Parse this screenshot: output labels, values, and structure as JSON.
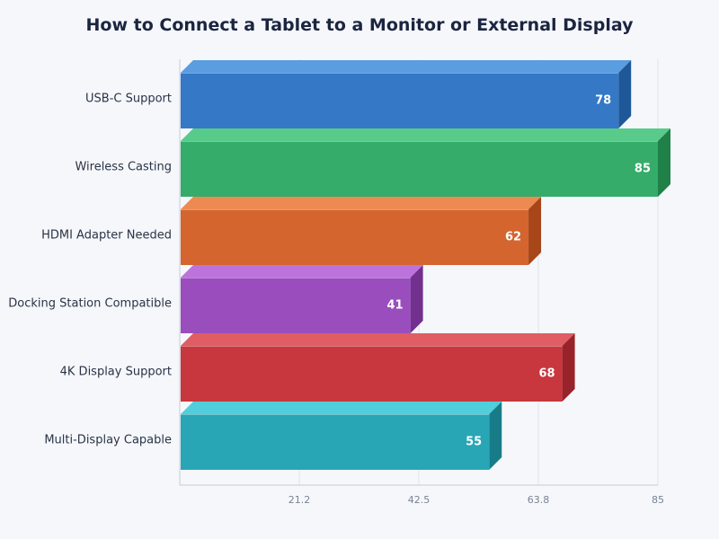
{
  "chart_data": {
    "type": "bar",
    "orientation": "horizontal",
    "title": "How to Connect a Tablet to a Monitor or External Display",
    "categories": [
      "USB-C Support",
      "Wireless Casting",
      "HDMI Adapter Needed",
      "Docking Station Compatible",
      "4K Display Support",
      "Multi-Display Capable"
    ],
    "values": [
      78,
      85,
      62,
      41,
      68,
      55
    ],
    "colors": [
      "#3478c6",
      "#35ac6a",
      "#d4652e",
      "#9a4ebd",
      "#c7373d",
      "#28a6b5"
    ],
    "side_colors": [
      "#1f5898",
      "#1f8048",
      "#a64619",
      "#72308f",
      "#99232a",
      "#177c88"
    ],
    "top_colors": [
      "#5a9de0",
      "#58cb8a",
      "#ed8a52",
      "#bd73dc",
      "#e05d64",
      "#50cedb"
    ],
    "xlim": [
      0,
      85
    ],
    "xticks": [
      "21.2",
      "42.5",
      "63.8",
      "85"
    ],
    "xtick_values": [
      21.25,
      42.5,
      63.75,
      85
    ],
    "grid": true,
    "legend": "none"
  }
}
